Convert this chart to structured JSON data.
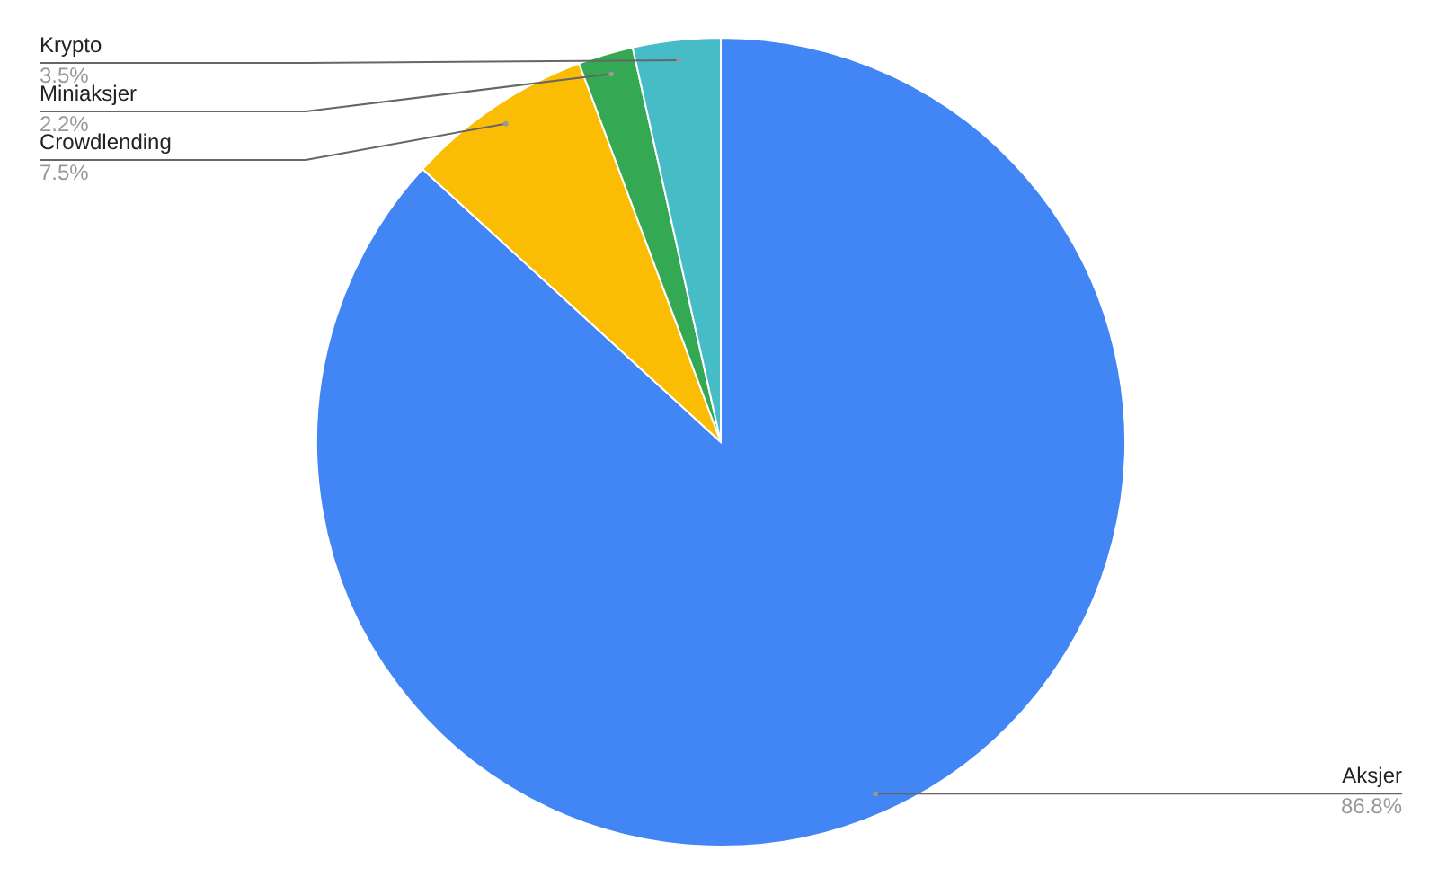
{
  "chart_data": {
    "type": "pie",
    "categories": [
      "Aksjer",
      "Crowdlending",
      "Miniaksjer",
      "Krypto"
    ],
    "values": [
      86.8,
      7.5,
      2.2,
      3.5
    ],
    "colors": [
      "#4285f4",
      "#fbbc04",
      "#34a853",
      "#46bdc6"
    ],
    "value_labels": [
      "86.8%",
      "7.5%",
      "2.2%",
      "3.5%"
    ]
  }
}
